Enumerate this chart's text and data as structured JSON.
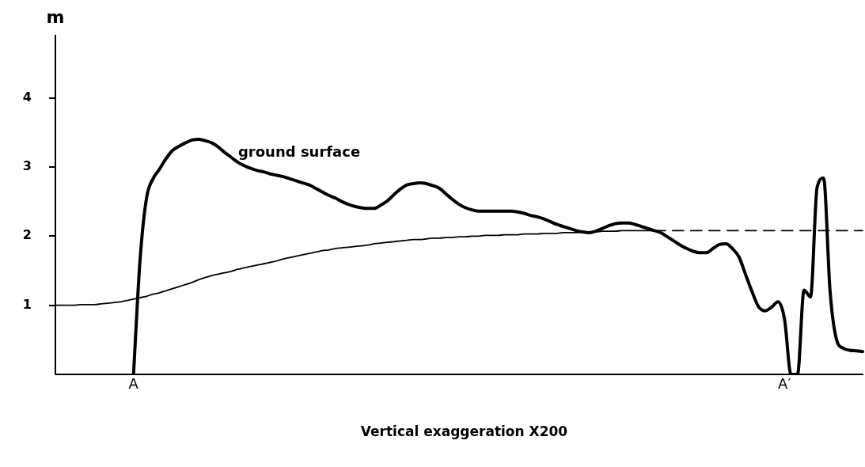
{
  "chart_data": {
    "type": "line",
    "ylabel": "m",
    "categories": [
      null,
      null,
      null,
      null,
      null,
      null,
      null,
      null,
      null,
      null,
      null,
      null,
      "A",
      null,
      null,
      null,
      null,
      null,
      null,
      null,
      null,
      null,
      null,
      null,
      null,
      null,
      null,
      null,
      null,
      null,
      null,
      null,
      null,
      null,
      null,
      null,
      null,
      null,
      null,
      null,
      null,
      null,
      null,
      null,
      null,
      null,
      null,
      null,
      null,
      null,
      null,
      null,
      null,
      null,
      null,
      null,
      null,
      null,
      null,
      null,
      null,
      null,
      null,
      null,
      null,
      null,
      null,
      null,
      null,
      null,
      null,
      null,
      null,
      null,
      null,
      null,
      null,
      null,
      null,
      null,
      null,
      null,
      null,
      null,
      null,
      null,
      null,
      null,
      null,
      null,
      null,
      null,
      null,
      null,
      null,
      null,
      null,
      null,
      null,
      null,
      null,
      null,
      null,
      null,
      null,
      null,
      null,
      null,
      null,
      null,
      null,
      null,
      "A′",
      null,
      null,
      null,
      null,
      null,
      null,
      null,
      null,
      null,
      null,
      null,
      null
    ],
    "ylim": [
      0,
      4.9
    ],
    "yticks": [
      1,
      2,
      3,
      4
    ],
    "grid": false,
    "legend": false,
    "marker": "none",
    "annotations": [
      "Vertical exaggeration X200"
    ],
    "series": [
      {
        "name": "ground surface",
        "color": "#000000",
        "values": [
          null,
          null,
          null,
          null,
          null,
          null,
          null,
          null,
          null,
          null,
          null,
          null,
          0,
          1.65,
          2.55,
          2.83,
          2.97,
          3.12,
          3.24,
          3.3,
          3.35,
          3.39,
          3.4,
          3.38,
          3.35,
          3.29,
          3.21,
          3.14,
          3.07,
          3.02,
          2.98,
          2.95,
          2.93,
          2.9,
          2.88,
          2.86,
          2.83,
          2.8,
          2.77,
          2.74,
          2.69,
          2.64,
          2.59,
          2.55,
          2.5,
          2.46,
          2.43,
          2.41,
          2.4,
          2.4,
          2.45,
          2.51,
          2.6,
          2.68,
          2.74,
          2.76,
          2.77,
          2.76,
          2.73,
          2.69,
          2.61,
          2.53,
          2.46,
          2.41,
          2.38,
          2.36,
          2.36,
          2.36,
          2.36,
          2.36,
          2.36,
          2.35,
          2.33,
          2.3,
          2.28,
          2.25,
          2.21,
          2.17,
          2.14,
          2.11,
          2.08,
          2.06,
          2.05,
          2.07,
          2.11,
          2.15,
          2.18,
          2.19,
          2.19,
          2.17,
          2.14,
          2.11,
          2.08,
          2.05,
          1.99,
          1.93,
          1.87,
          1.82,
          1.78,
          1.76,
          1.76,
          1.82,
          1.88,
          1.89,
          1.82,
          1.7,
          1.45,
          1.2,
          0.98,
          0.92,
          0.97,
          1.05,
          0.8,
          0,
          0,
          1.22,
          1.12,
          2.7,
          2.84,
          1.2,
          0.5,
          0.38,
          0.35,
          0.34,
          0.33
        ]
      },
      {
        "color": "#000000",
        "values": [
          1,
          1,
          1,
          1,
          1.01,
          1.01,
          1.01,
          1.02,
          1.03,
          1.04,
          1.05,
          1.07,
          1.09,
          1.11,
          1.13,
          1.16,
          1.18,
          1.21,
          1.24,
          1.27,
          1.3,
          1.33,
          1.37,
          1.4,
          1.43,
          1.45,
          1.47,
          1.49,
          1.52,
          1.54,
          1.56,
          1.58,
          1.6,
          1.62,
          1.64,
          1.67,
          1.69,
          1.71,
          1.73,
          1.75,
          1.77,
          1.79,
          1.8,
          1.82,
          1.83,
          1.84,
          1.85,
          1.86,
          1.87,
          1.89,
          1.9,
          1.91,
          1.92,
          1.93,
          1.94,
          1.95,
          1.95,
          1.96,
          1.97,
          1.97,
          1.98,
          1.98,
          1.99,
          1.99,
          2,
          2,
          2.01,
          2.01,
          2.01,
          2.02,
          2.02,
          2.02,
          2.03,
          2.03,
          2.03,
          2.04,
          2.04,
          2.04,
          2.05,
          2.05,
          2.05,
          2.06,
          2.06,
          2.06,
          2.07,
          2.07,
          2.07,
          2.08,
          2.08,
          2.08,
          2.08,
          2.08,
          2.08,
          null,
          null,
          null,
          null,
          null,
          null,
          null,
          null,
          null,
          null,
          null,
          null,
          null,
          null,
          null,
          null,
          null,
          null,
          null,
          null,
          null,
          null,
          null,
          null,
          null,
          null,
          null,
          null,
          null,
          null,
          null,
          null
        ]
      },
      {
        "color": "#000000",
        "line_style": "dashed",
        "values": [
          null,
          null,
          null,
          null,
          null,
          null,
          null,
          null,
          null,
          null,
          null,
          null,
          null,
          null,
          null,
          null,
          null,
          null,
          null,
          null,
          null,
          null,
          null,
          null,
          null,
          null,
          null,
          null,
          null,
          null,
          null,
          null,
          null,
          null,
          null,
          null,
          null,
          null,
          null,
          null,
          null,
          null,
          null,
          null,
          null,
          null,
          null,
          null,
          null,
          null,
          null,
          null,
          null,
          null,
          null,
          null,
          null,
          null,
          null,
          null,
          null,
          null,
          null,
          null,
          null,
          null,
          null,
          null,
          null,
          null,
          null,
          null,
          null,
          null,
          null,
          null,
          null,
          null,
          null,
          null,
          null,
          null,
          null,
          null,
          null,
          null,
          null,
          null,
          null,
          null,
          null,
          null,
          2.08,
          2.08,
          2.08,
          2.08,
          2.08,
          2.08,
          2.08,
          2.08,
          2.08,
          2.08,
          2.08,
          2.08,
          2.08,
          2.08,
          2.08,
          2.08,
          2.08,
          2.08,
          2.08,
          2.08,
          2.08,
          2.08,
          2.08,
          2.08,
          2.08,
          2.08,
          2.08,
          2.08,
          2.08,
          2.08,
          2.08,
          2.08,
          2.08
        ]
      }
    ]
  }
}
